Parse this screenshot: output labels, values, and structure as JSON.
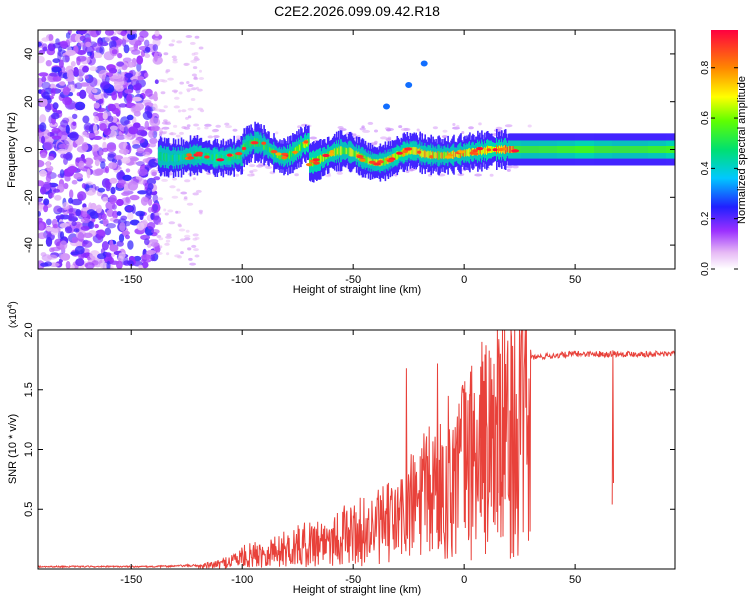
{
  "title": "C2E2.2026.099.09.42.R18",
  "chart_data": [
    {
      "type": "heatmap",
      "xlabel": "Height of straight line (km)",
      "ylabel": "Frequency (Hz)",
      "xlim": [
        -192,
        95
      ],
      "ylim": [
        -50,
        50
      ],
      "xticks": [
        -150,
        -100,
        -50,
        0,
        50
      ],
      "xtick_labels": [
        "-150",
        "-100",
        "-50",
        "0",
        "50"
      ],
      "yticks": [
        -40,
        -20,
        0,
        20,
        40
      ],
      "ytick_labels": [
        "-40",
        "-20",
        "0",
        "20",
        "40"
      ],
      "colorbar": {
        "label": "Normalized spectral amplitude",
        "range": [
          0,
          0.95
        ],
        "ticks": [
          0.0,
          0.2,
          0.4,
          0.6,
          0.8
        ],
        "tick_labels": [
          "0.0",
          "0.2",
          "0.4",
          "0.6",
          "0.8"
        ]
      },
      "regions": [
        {
          "name": "broadband noise",
          "x_range": [
            -192,
            -138
          ],
          "f_range": [
            -50,
            50
          ],
          "amplitude": 0.12
        },
        {
          "name": "signal line",
          "x_range": [
            -138,
            95
          ],
          "f_center": 0,
          "f_halfwidth": 3,
          "peak_amplitude": 0.9
        },
        {
          "name": "faint harmonic",
          "points": [
            [
              -35,
              18
            ],
            [
              -25,
              27
            ],
            [
              -18,
              36
            ]
          ],
          "amplitude": 0.3
        }
      ]
    },
    {
      "type": "line",
      "xlabel": "Height of straight line (km)",
      "ylabel": "SNR (10 * v/v)",
      "multiplier_label": "(x10",
      "multiplier_exponent": "4",
      "multiplier_close": ")",
      "xlim": [
        -192,
        95
      ],
      "ylim": [
        0,
        2.0
      ],
      "xticks": [
        -150,
        -100,
        -50,
        0,
        50
      ],
      "xtick_labels": [
        "-150",
        "-100",
        "-50",
        "0",
        "50"
      ],
      "yticks": [
        0.5,
        1.0,
        1.5,
        2.0
      ],
      "ytick_labels": [
        "0.5",
        "1.0",
        "1.5",
        "2.0"
      ],
      "color": "#e8413a",
      "envelope": [
        [
          -192,
          0.02
        ],
        [
          -140,
          0.02
        ],
        [
          -120,
          0.03
        ],
        [
          -110,
          0.06
        ],
        [
          -100,
          0.15
        ],
        [
          -80,
          0.25
        ],
        [
          -60,
          0.38
        ],
        [
          -40,
          0.5
        ],
        [
          -30,
          0.6
        ],
        [
          -20,
          0.85
        ],
        [
          -10,
          1.05
        ],
        [
          0,
          1.3
        ],
        [
          10,
          1.5
        ],
        [
          20,
          1.68
        ],
        [
          30,
          1.77
        ],
        [
          50,
          1.8
        ],
        [
          95,
          1.8
        ]
      ],
      "notable_peaks": [
        [
          -26,
          1.68
        ],
        [
          -12,
          1.72
        ],
        [
          8,
          1.9
        ],
        [
          15,
          2.0
        ],
        [
          67,
          1.83
        ]
      ]
    }
  ]
}
